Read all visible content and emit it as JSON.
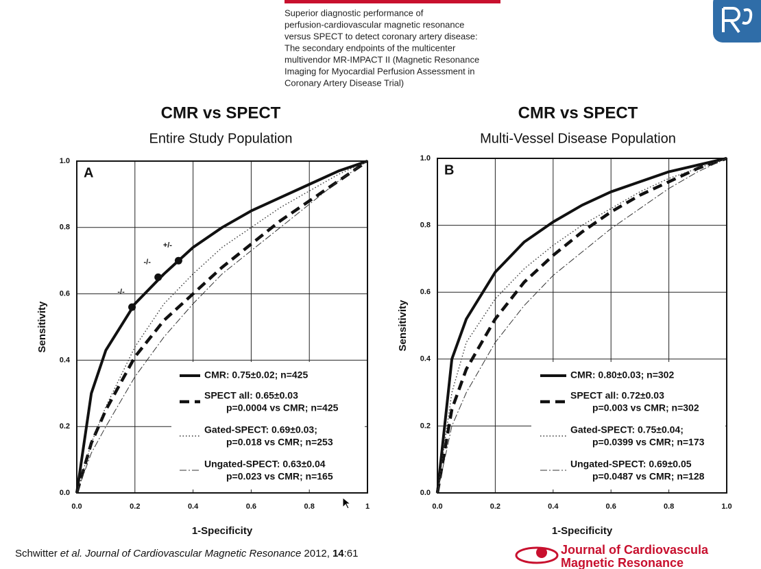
{
  "header": {
    "lines": [
      "Superior diagnostic performance of",
      "perfusion-cardiovascular magnetic resonance",
      "versus SPECT to detect coronary artery disease:",
      "The secondary endpoints of the multicenter",
      "multivendor MR-IMPACT II (Magnetic Resonance",
      "Imaging for Myocardial Perfusion Assessment in",
      "Coronary Artery Disease Trial)"
    ]
  },
  "footer": {
    "authors": "Schwitter",
    "etal": "et al.",
    "journal": "Journal of Cardiovascular Magnetic Resonance",
    "year": "2012,",
    "volume": "14",
    "page": ":61",
    "logo_lines": [
      "Journal of Cardiovascula",
      "Magnetic Resonance"
    ]
  },
  "chart_data": [
    {
      "type": "line",
      "title": "CMR vs SPECT",
      "subtitle": "Entire Study Population",
      "panel_label": "A",
      "xlabel": "1-Specificity",
      "ylabel": "Sensitivity",
      "xlim": [
        0,
        1
      ],
      "ylim": [
        0,
        1
      ],
      "xticks": [
        {
          "value": 0,
          "label": "0.0"
        },
        0.2,
        0.4,
        0.6,
        0.8,
        1
      ],
      "yticks": [
        {
          "value": 0,
          "label": "0.0"
        },
        0.2,
        0.4,
        0.6,
        0.8,
        {
          "value": 1,
          "label": "1.0"
        }
      ],
      "grid": true,
      "x": [
        0,
        0.05,
        0.1,
        0.2,
        0.3,
        0.4,
        0.5,
        0.6,
        0.7,
        0.8,
        0.9,
        1
      ],
      "series": [
        {
          "name": "CMR: 0.75±0.02; n=425",
          "color": "#111111",
          "style": "solid",
          "values": [
            0,
            0.3,
            0.43,
            0.57,
            0.66,
            0.74,
            0.8,
            0.85,
            0.89,
            0.93,
            0.97,
            1
          ]
        },
        {
          "name": "SPECT all: 0.65±0.03",
          "detail": "p=0.0004 vs CMR; n=425",
          "color": "#111111",
          "style": "dashed",
          "values": [
            0,
            0.15,
            0.25,
            0.41,
            0.52,
            0.6,
            0.68,
            0.75,
            0.82,
            0.88,
            0.94,
            1
          ]
        },
        {
          "name": "Gated-SPECT: 0.69±0.03;",
          "detail": "p=0.018 vs CMR; n=253",
          "color": "#333333",
          "style": "dotted",
          "values": [
            0,
            0.15,
            0.26,
            0.44,
            0.57,
            0.66,
            0.74,
            0.8,
            0.86,
            0.91,
            0.96,
            1
          ]
        },
        {
          "name": "Ungated-SPECT: 0.63±0.04",
          "detail": "p=0.023 vs CMR; n=165",
          "color": "#333333",
          "style": "dashdot",
          "values": [
            0,
            0.12,
            0.2,
            0.35,
            0.47,
            0.57,
            0.66,
            0.73,
            0.8,
            0.87,
            0.94,
            1
          ]
        }
      ],
      "points": [
        {
          "label": "-/-",
          "x": 0.19,
          "y": 0.56
        },
        {
          "label": "-/-",
          "x": 0.28,
          "y": 0.65
        },
        {
          "label": "+/-",
          "x": 0.35,
          "y": 0.7
        }
      ]
    },
    {
      "type": "line",
      "title": "CMR vs SPECT",
      "subtitle": "Multi-Vessel Disease Population",
      "panel_label": "B",
      "xlabel": "1-Specificity",
      "ylabel": "Sensitivity",
      "xlim": [
        0,
        1
      ],
      "ylim": [
        0,
        1
      ],
      "xticks": [
        {
          "value": 0,
          "label": "0.0"
        },
        0.2,
        0.4,
        0.6,
        0.8,
        {
          "value": 1,
          "label": "1.0"
        }
      ],
      "yticks": [
        {
          "value": 0,
          "label": "0.0"
        },
        0.2,
        0.4,
        0.6,
        0.8,
        {
          "value": 1,
          "label": "1.0"
        }
      ],
      "grid": true,
      "x": [
        0,
        0.05,
        0.1,
        0.2,
        0.3,
        0.4,
        0.5,
        0.6,
        0.7,
        0.8,
        0.9,
        1
      ],
      "series": [
        {
          "name": "CMR: 0.80±0.03; n=302",
          "color": "#111111",
          "style": "solid",
          "values": [
            0,
            0.4,
            0.52,
            0.66,
            0.75,
            0.81,
            0.86,
            0.9,
            0.93,
            0.96,
            0.98,
            1
          ]
        },
        {
          "name": "SPECT all: 0.72±0.03",
          "detail": "p=0.003 vs CMR; n=302",
          "color": "#111111",
          "style": "dashed",
          "values": [
            0,
            0.25,
            0.37,
            0.52,
            0.63,
            0.71,
            0.78,
            0.84,
            0.89,
            0.93,
            0.97,
            1
          ]
        },
        {
          "name": "Gated-SPECT: 0.75±0.04;",
          "detail": "p=0.0399 vs CMR; n=173",
          "color": "#333333",
          "style": "dotted",
          "values": [
            0,
            0.3,
            0.45,
            0.58,
            0.67,
            0.74,
            0.8,
            0.85,
            0.9,
            0.94,
            0.97,
            1
          ]
        },
        {
          "name": "Ungated-SPECT: 0.69±0.05",
          "detail": "p=0.0487 vs CMR; n=128",
          "color": "#333333",
          "style": "dashdot",
          "values": [
            0,
            0.2,
            0.3,
            0.45,
            0.56,
            0.65,
            0.72,
            0.79,
            0.85,
            0.91,
            0.96,
            1
          ]
        }
      ]
    }
  ]
}
